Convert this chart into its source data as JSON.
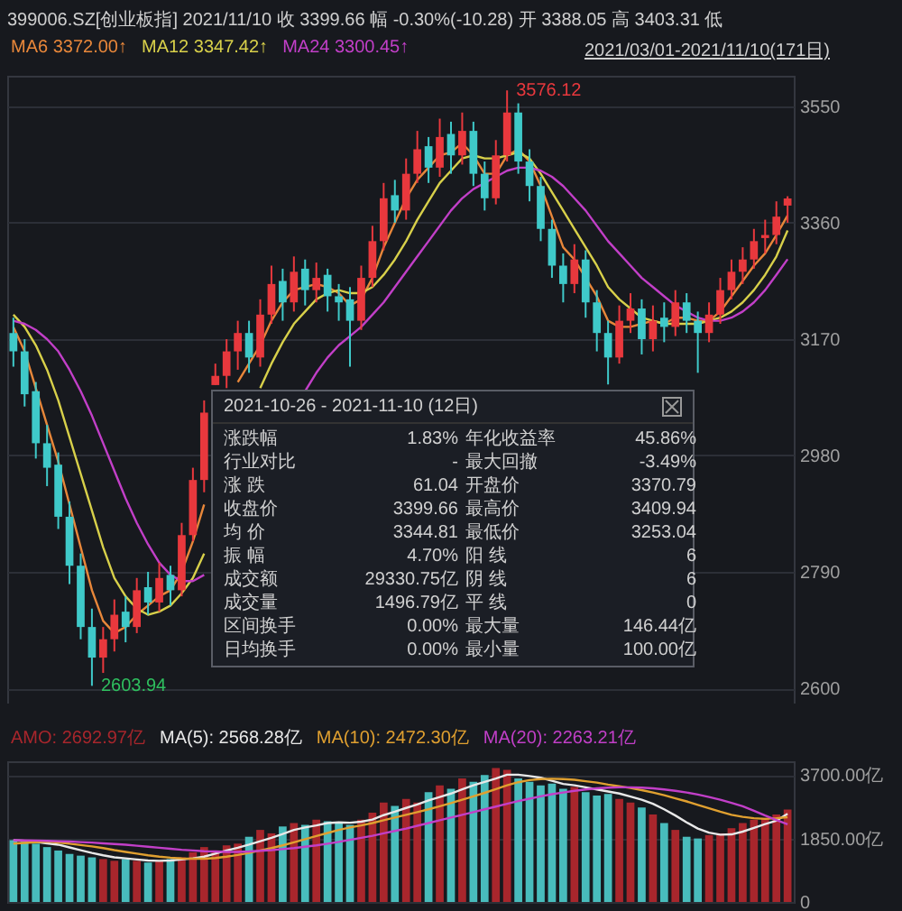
{
  "chart_data": [
    {
      "type": "candlestick",
      "title": "399006.SZ[创业板指]",
      "subtitle": "2021/11/10  收 3399.66  幅 -0.30%(-10.28)  开 3388.05  高 3403.31  低",
      "categories": [
        null,
        null,
        null,
        null,
        null,
        null,
        null,
        null,
        null,
        null,
        null,
        null,
        null,
        null,
        null,
        null,
        null,
        null,
        null,
        null,
        null,
        null,
        null,
        null,
        null,
        null,
        null,
        null,
        null,
        null,
        null,
        null,
        null,
        null,
        null,
        null,
        null,
        null,
        null,
        null,
        null,
        null,
        null,
        null,
        null,
        null,
        null,
        null,
        null,
        null,
        null,
        null,
        null,
        null,
        null,
        null,
        null,
        null,
        null,
        null,
        null,
        null,
        null,
        null,
        null,
        null,
        null,
        null,
        null,
        null
      ],
      "ohlc": [
        [
          3180,
          3205,
          3125,
          3150
        ],
        [
          3150,
          3170,
          3060,
          3080
        ],
        [
          3085,
          3100,
          2975,
          3000
        ],
        [
          3000,
          3030,
          2930,
          2960
        ],
        [
          2965,
          2985,
          2860,
          2880
        ],
        [
          2880,
          2905,
          2770,
          2800
        ],
        [
          2800,
          2820,
          2680,
          2700
        ],
        [
          2700,
          2730,
          2603.94,
          2650
        ],
        [
          2650,
          2700,
          2625,
          2680
        ],
        [
          2680,
          2745,
          2660,
          2720
        ],
        [
          2725,
          2750,
          2675,
          2700
        ],
        [
          2700,
          2780,
          2690,
          2760
        ],
        [
          2765,
          2790,
          2720,
          2740
        ],
        [
          2740,
          2805,
          2725,
          2780
        ],
        [
          2785,
          2800,
          2735,
          2760
        ],
        [
          2760,
          2870,
          2750,
          2850
        ],
        [
          2850,
          2960,
          2840,
          2940
        ],
        [
          2940,
          3070,
          2920,
          3050
        ],
        [
          3095,
          3130,
          3095,
          3110
        ],
        [
          3110,
          3170,
          3090,
          3150
        ],
        [
          3150,
          3200,
          3120,
          3180
        ],
        [
          3180,
          3200,
          3115,
          3140
        ],
        [
          3140,
          3235,
          3125,
          3210
        ],
        [
          3210,
          3290,
          3195,
          3260
        ],
        [
          3265,
          3285,
          3200,
          3230
        ],
        [
          3230,
          3305,
          3215,
          3280
        ],
        [
          3285,
          3300,
          3225,
          3250
        ],
        [
          3250,
          3295,
          3230,
          3270
        ],
        [
          3275,
          3285,
          3215,
          3240
        ],
        [
          3240,
          3260,
          3200,
          3230
        ],
        [
          3235,
          3255,
          3125,
          3200
        ],
        [
          3200,
          3290,
          3185,
          3270
        ],
        [
          3270,
          3355,
          3255,
          3330
        ],
        [
          3330,
          3425,
          3315,
          3400
        ],
        [
          3405,
          3430,
          3360,
          3380
        ],
        [
          3380,
          3465,
          3365,
          3440
        ],
        [
          3440,
          3510,
          3425,
          3480
        ],
        [
          3485,
          3500,
          3425,
          3450
        ],
        [
          3450,
          3530,
          3435,
          3500
        ],
        [
          3505,
          3525,
          3440,
          3470
        ],
        [
          3470,
          3540,
          3455,
          3510
        ],
        [
          3510,
          3525,
          3420,
          3440
        ],
        [
          3440,
          3460,
          3380,
          3400
        ],
        [
          3400,
          3495,
          3390,
          3470
        ],
        [
          3470,
          3576.12,
          3460,
          3540
        ],
        [
          3540,
          3555,
          3440,
          3460
        ],
        [
          3460,
          3480,
          3395,
          3420
        ],
        [
          3420,
          3435,
          3330,
          3350
        ],
        [
          3350,
          3365,
          3270,
          3290
        ],
        [
          3290,
          3310,
          3230,
          3260
        ],
        [
          3260,
          3325,
          3245,
          3300
        ],
        [
          3300,
          3315,
          3205,
          3230
        ],
        [
          3230,
          3250,
          3150,
          3180
        ],
        [
          3180,
          3200,
          3096,
          3140
        ],
        [
          3140,
          3225,
          3130,
          3200
        ],
        [
          3200,
          3245,
          3180,
          3220
        ],
        [
          3220,
          3235,
          3145,
          3170
        ],
        [
          3170,
          3225,
          3150,
          3200
        ],
        [
          3205,
          3230,
          3165,
          3190
        ],
        [
          3190,
          3250,
          3175,
          3230
        ],
        [
          3230,
          3245,
          3180,
          3200
        ],
        [
          3200,
          3215,
          3115,
          3180
        ],
        [
          3180,
          3230,
          3165,
          3210
        ],
        [
          3210,
          3270,
          3195,
          3250
        ],
        [
          3250,
          3300,
          3235,
          3280
        ],
        [
          3280,
          3320,
          3260,
          3300
        ],
        [
          3300,
          3350,
          3285,
          3330
        ],
        [
          3335,
          3365,
          3310,
          3340
        ],
        [
          3340,
          3395,
          3325,
          3370
        ],
        [
          3388.05,
          3403.31,
          3360,
          3399.66
        ]
      ],
      "colors": [
        "#3fc9c9",
        "#3fc9c9",
        "#3fc9c9",
        "#3fc9c9",
        "#3fc9c9",
        "#3fc9c9",
        "#3fc9c9",
        "#3fc9c9",
        "#e8383d",
        "#e8383d",
        "#3fc9c9",
        "#e8383d",
        "#3fc9c9",
        "#e8383d",
        "#3fc9c9",
        "#e8383d",
        "#e8383d",
        "#e8383d",
        "#e8383d",
        "#e8383d",
        "#e8383d",
        "#3fc9c9",
        "#e8383d",
        "#e8383d",
        "#3fc9c9",
        "#e8383d",
        "#3fc9c9",
        "#e8383d",
        "#3fc9c9",
        "#3fc9c9",
        "#3fc9c9",
        "#e8383d",
        "#e8383d",
        "#e8383d",
        "#3fc9c9",
        "#e8383d",
        "#e8383d",
        "#3fc9c9",
        "#e8383d",
        "#3fc9c9",
        "#e8383d",
        "#3fc9c9",
        "#3fc9c9",
        "#e8383d",
        "#e8383d",
        "#3fc9c9",
        "#3fc9c9",
        "#3fc9c9",
        "#3fc9c9",
        "#3fc9c9",
        "#e8383d",
        "#3fc9c9",
        "#3fc9c9",
        "#3fc9c9",
        "#e8383d",
        "#e8383d",
        "#3fc9c9",
        "#e8383d",
        "#3fc9c9",
        "#e8383d",
        "#3fc9c9",
        "#3fc9c9",
        "#e8383d",
        "#e8383d",
        "#e8383d",
        "#e8383d",
        "#e8383d",
        "#e8383d",
        "#e8383d",
        "#e8383d"
      ],
      "series": [
        {
          "name": "MA6 3372.00↑",
          "type": "line",
          "color": "#e8873a",
          "values": [
            3190,
            3150,
            3090,
            3030,
            2970,
            2900,
            2830,
            2760,
            2710,
            2690,
            2700,
            2720,
            2735,
            2750,
            2760,
            2790,
            2840,
            2900,
            null,
            null,
            3100,
            3130,
            3160,
            3200,
            3230,
            3250,
            3255,
            3260,
            3255,
            3245,
            3225,
            3235,
            3270,
            3320,
            3360,
            3400,
            3430,
            3450,
            3470,
            3475,
            3490,
            3470,
            3440,
            3440,
            3470,
            3480,
            3460,
            3420,
            3370,
            3320,
            3300,
            3270,
            3240,
            3200,
            3190,
            3190,
            3195,
            3200,
            3195,
            3205,
            3205,
            3200,
            3200,
            3215,
            3240,
            3265,
            3290,
            3310,
            3340,
            3372.0
          ]
        },
        {
          "name": "MA12 3347.42↑",
          "type": "line",
          "color": "#d8d04a",
          "values": [
            3210,
            3190,
            3160,
            3120,
            3070,
            3010,
            2950,
            2890,
            2830,
            2780,
            2750,
            2730,
            2720,
            2725,
            2735,
            2755,
            2780,
            2820,
            null,
            null,
            null,
            null,
            3090,
            3130,
            3165,
            3195,
            3215,
            3235,
            3245,
            3250,
            3245,
            3245,
            3255,
            3275,
            3300,
            3330,
            3365,
            3395,
            3425,
            3445,
            3465,
            3470,
            3465,
            3465,
            3470,
            3475,
            3465,
            3440,
            3410,
            3380,
            3350,
            3320,
            3290,
            3255,
            3235,
            3220,
            3205,
            3200,
            3195,
            3195,
            3195,
            3195,
            3200,
            3205,
            3215,
            3230,
            3250,
            3275,
            3305,
            3347.42
          ]
        },
        {
          "name": "MA24 3300.45↑",
          "type": "line",
          "color": "#c23fc8",
          "values": [
            3200,
            3195,
            3185,
            3170,
            3150,
            3120,
            3085,
            3045,
            3000,
            2955,
            2910,
            2870,
            2835,
            2805,
            2785,
            2775,
            2775,
            2785,
            null,
            null,
            null,
            null,
            null,
            null,
            null,
            null,
            3085,
            3115,
            3140,
            3160,
            3175,
            3190,
            3210,
            3230,
            3255,
            3280,
            3305,
            3330,
            3355,
            3380,
            3400,
            3415,
            3425,
            3435,
            3445,
            3450,
            3450,
            3445,
            3435,
            3420,
            3400,
            3380,
            3355,
            3330,
            3310,
            3290,
            3270,
            3255,
            3240,
            3225,
            3215,
            3205,
            3200,
            3200,
            3205,
            3215,
            3230,
            3250,
            3275,
            3300.45
          ]
        }
      ],
      "ylim": [
        2575,
        3600
      ],
      "yticks": [
        2600,
        2790,
        2980,
        3170,
        3360,
        3550
      ],
      "grid": "y",
      "legend": "top left",
      "annotations": [
        "3576.12",
        "2603.94",
        "2021/03/01-2021/11/10(171日)"
      ]
    },
    {
      "type": "bar",
      "categories": [
        null,
        null,
        null,
        null,
        null,
        null,
        null,
        null,
        null,
        null,
        null,
        null,
        null,
        null,
        null,
        null,
        null,
        null,
        null,
        null,
        null,
        null,
        null,
        null,
        null,
        null,
        null,
        null,
        null,
        null,
        null,
        null,
        null,
        null,
        null,
        null,
        null,
        null,
        null,
        null,
        null,
        null,
        null,
        null,
        null,
        null,
        null,
        null,
        null,
        null,
        null,
        null,
        null,
        null,
        null,
        null,
        null,
        null,
        null,
        null,
        null,
        null,
        null,
        null,
        null,
        null,
        null,
        null,
        null,
        null
      ],
      "series": [
        {
          "name": "AMO: 2692.97亿",
          "type": "bar",
          "colors": [
            "#48bcbc",
            "#48bcbc",
            "#48bcbc",
            "#48bcbc",
            "#48bcbc",
            "#48bcbc",
            "#48bcbc",
            "#48bcbc",
            "#a8262c",
            "#a8262c",
            "#48bcbc",
            "#a8262c",
            "#48bcbc",
            "#a8262c",
            "#48bcbc",
            "#a8262c",
            "#a8262c",
            "#a8262c",
            "#a8262c",
            "#a8262c",
            "#a8262c",
            "#48bcbc",
            "#a8262c",
            "#a8262c",
            "#48bcbc",
            "#a8262c",
            "#48bcbc",
            "#a8262c",
            "#48bcbc",
            "#48bcbc",
            "#48bcbc",
            "#a8262c",
            "#a8262c",
            "#a8262c",
            "#48bcbc",
            "#a8262c",
            "#a8262c",
            "#48bcbc",
            "#a8262c",
            "#48bcbc",
            "#a8262c",
            "#48bcbc",
            "#48bcbc",
            "#a8262c",
            "#a8262c",
            "#48bcbc",
            "#48bcbc",
            "#48bcbc",
            "#48bcbc",
            "#48bcbc",
            "#a8262c",
            "#48bcbc",
            "#48bcbc",
            "#48bcbc",
            "#a8262c",
            "#a8262c",
            "#48bcbc",
            "#a8262c",
            "#48bcbc",
            "#a8262c",
            "#48bcbc",
            "#48bcbc",
            "#a8262c",
            "#a8262c",
            "#a8262c",
            "#a8262c",
            "#a8262c",
            "#a8262c",
            "#a8262c",
            "#a8262c"
          ],
          "values": [
            1800,
            1750,
            1700,
            1600,
            1500,
            1400,
            1350,
            1300,
            1250,
            1200,
            1250,
            1200,
            1150,
            1200,
            1250,
            1300,
            1450,
            1600,
            1500,
            1650,
            1700,
            1900,
            2100,
            2000,
            2200,
            2300,
            2250,
            2400,
            2350,
            2300,
            2250,
            2400,
            2600,
            2900,
            2800,
            3000,
            2900,
            3200,
            3400,
            3300,
            3600,
            3500,
            3700,
            3900,
            3850,
            3600,
            3500,
            3400,
            3450,
            3300,
            3350,
            3200,
            3100,
            3150,
            3000,
            2900,
            2750,
            2550,
            2300,
            2100,
            1900,
            1850,
            1950,
            2000,
            2150,
            2300,
            2400,
            2450,
            2550,
            2692.97
          ]
        },
        {
          "name": "MA(5): 2568.28亿",
          "type": "line",
          "color": "#e8e8e8",
          "values": [
            1800,
            1780,
            1750,
            1710,
            1670,
            1590,
            1510,
            1430,
            1360,
            1300,
            1270,
            1240,
            1210,
            1200,
            1210,
            1240,
            1270,
            1320,
            1410,
            1500,
            1580,
            1670,
            1770,
            1870,
            1980,
            2100,
            2170,
            2230,
            2300,
            2320,
            2310,
            2340,
            2400,
            2530,
            2630,
            2740,
            2840,
            2960,
            3060,
            3160,
            3280,
            3400,
            3500,
            3600,
            3710,
            3710,
            3670,
            3620,
            3530,
            3440,
            3400,
            3340,
            3280,
            3220,
            3160,
            3070,
            2980,
            2860,
            2700,
            2520,
            2320,
            2140,
            2020,
            1960,
            1970,
            2050,
            2160,
            2270,
            2370,
            2568.28
          ]
        },
        {
          "name": "MA(10): 2472.30亿",
          "type": "line",
          "color": "#e0a030",
          "values": [
            1700,
            1720,
            1740,
            1760,
            1730,
            1700,
            1660,
            1620,
            1570,
            1510,
            1460,
            1410,
            1360,
            1320,
            1290,
            1270,
            1260,
            1260,
            1280,
            1320,
            1370,
            1430,
            1500,
            1570,
            1650,
            1740,
            1830,
            1920,
            2010,
            2100,
            2170,
            2230,
            2300,
            2380,
            2460,
            2540,
            2620,
            2700,
            2790,
            2880,
            2980,
            3080,
            3180,
            3290,
            3400,
            3490,
            3550,
            3580,
            3590,
            3580,
            3560,
            3520,
            3480,
            3420,
            3370,
            3320,
            3260,
            3190,
            3110,
            3020,
            2930,
            2830,
            2730,
            2630,
            2540,
            2480,
            2440,
            2420,
            2440,
            2472.3
          ]
        },
        {
          "name": "MA(20): 2263.21亿",
          "type": "line",
          "color": "#c23fc8",
          "values": [
            1800,
            1795,
            1790,
            1780,
            1770,
            1760,
            1745,
            1730,
            1710,
            1690,
            1670,
            1640,
            1610,
            1580,
            1550,
            1520,
            1500,
            1480,
            1470,
            1460,
            1460,
            1470,
            1490,
            1510,
            1540,
            1570,
            1610,
            1650,
            1700,
            1750,
            1810,
            1870,
            1930,
            2000,
            2070,
            2140,
            2220,
            2300,
            2380,
            2460,
            2540,
            2620,
            2700,
            2780,
            2860,
            2940,
            3010,
            3080,
            3140,
            3190,
            3240,
            3280,
            3310,
            3330,
            3340,
            3340,
            3330,
            3310,
            3280,
            3240,
            3190,
            3130,
            3060,
            2980,
            2890,
            2790,
            2660,
            2520,
            2390,
            2263.21
          ]
        }
      ],
      "ylim": [
        0,
        4100
      ],
      "yticks": [
        0,
        {
          "value": 1850,
          "label": "1850.00亿"
        },
        {
          "value": 3700,
          "label": "3700.00亿"
        }
      ],
      "grid": "y",
      "legend": "top left"
    },
    {
      "type": "other",
      "title": "2021-10-26 - 2021-11-10 (12日)",
      "annotations": [
        "涨跌幅",
        "1.83%",
        "年化收益率",
        "45.86%",
        "行业对比",
        "-",
        "最大回撤",
        "-3.49%",
        "涨 跌",
        "61.04",
        "开盘价",
        "3370.79",
        "收盘价",
        "3399.66",
        "最高价",
        "3409.94",
        "均 价",
        "3344.81",
        "最低价",
        "3253.04",
        "振 幅",
        "4.70%",
        "阳 线",
        "6",
        "成交额",
        "29330.75亿",
        "阴 线",
        "6",
        "成交量",
        "1496.79亿",
        "平 线",
        "0",
        "区间换手",
        "0.00%",
        "最大量",
        "146.44亿",
        "日均换手",
        "0.00%",
        "最小量",
        "100.00亿"
      ]
    }
  ]
}
